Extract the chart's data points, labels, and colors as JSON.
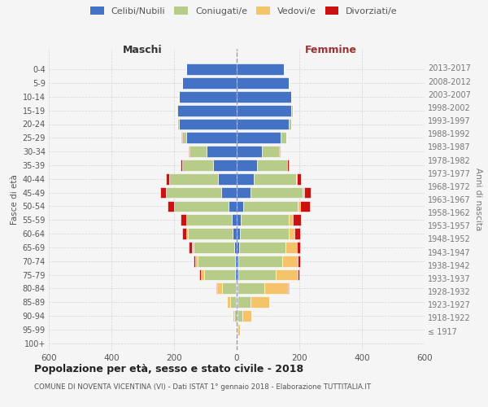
{
  "age_groups": [
    "100+",
    "95-99",
    "90-94",
    "85-89",
    "80-84",
    "75-79",
    "70-74",
    "65-69",
    "60-64",
    "55-59",
    "50-54",
    "45-49",
    "40-44",
    "35-39",
    "30-34",
    "25-29",
    "20-24",
    "15-19",
    "10-14",
    "5-9",
    "0-4"
  ],
  "birth_years": [
    "≤ 1917",
    "1918-1922",
    "1923-1927",
    "1928-1932",
    "1933-1937",
    "1938-1942",
    "1943-1947",
    "1948-1952",
    "1953-1957",
    "1958-1962",
    "1963-1967",
    "1968-1972",
    "1973-1977",
    "1978-1982",
    "1983-1987",
    "1988-1992",
    "1993-1997",
    "1998-2002",
    "2003-2007",
    "2008-2012",
    "2013-2017"
  ],
  "maschi": {
    "celibe": [
      0,
      0,
      0,
      2,
      2,
      5,
      5,
      8,
      12,
      15,
      25,
      50,
      60,
      75,
      95,
      160,
      185,
      190,
      185,
      175,
      160
    ],
    "coniugato": [
      0,
      2,
      8,
      18,
      45,
      100,
      120,
      130,
      145,
      145,
      175,
      175,
      155,
      100,
      55,
      15,
      5,
      2,
      0,
      0,
      0
    ],
    "vedovo": [
      0,
      0,
      5,
      12,
      15,
      10,
      8,
      5,
      3,
      2,
      1,
      1,
      1,
      0,
      0,
      0,
      0,
      0,
      0,
      0,
      0
    ],
    "divorziato": [
      0,
      0,
      0,
      0,
      2,
      5,
      5,
      10,
      15,
      18,
      20,
      18,
      10,
      5,
      2,
      1,
      0,
      0,
      0,
      0,
      0
    ]
  },
  "femmine": {
    "nubile": [
      0,
      0,
      2,
      3,
      3,
      5,
      5,
      7,
      10,
      12,
      20,
      45,
      55,
      65,
      80,
      140,
      165,
      175,
      175,
      165,
      150
    ],
    "coniugata": [
      1,
      3,
      15,
      40,
      85,
      120,
      140,
      150,
      155,
      155,
      175,
      165,
      135,
      95,
      55,
      18,
      8,
      3,
      0,
      0,
      0
    ],
    "vedova": [
      2,
      8,
      30,
      60,
      75,
      70,
      50,
      35,
      20,
      12,
      8,
      5,
      3,
      1,
      1,
      0,
      0,
      0,
      0,
      0,
      0
    ],
    "divorziata": [
      0,
      0,
      0,
      2,
      3,
      5,
      8,
      10,
      18,
      25,
      30,
      22,
      12,
      5,
      2,
      1,
      0,
      0,
      0,
      0,
      0
    ]
  },
  "colors": {
    "celibe_nubile": "#4472c4",
    "coniugato_a": "#b8cc8a",
    "vedovo_a": "#f5c46a",
    "divorziato_a": "#cc1111"
  },
  "title": "Popolazione per età, sesso e stato civile - 2018",
  "subtitle": "COMUNE DI NOVENTA VICENTINA (VI) - Dati ISTAT 1° gennaio 2018 - Elaborazione TUTTITALIA.IT",
  "ylabel_left": "Fasce di età",
  "ylabel_right": "Anni di nascita",
  "xlabel_left": "Maschi",
  "xlabel_right": "Femmine",
  "xlim": 600,
  "background_color": "#f5f5f5",
  "grid_color": "#cccccc",
  "legend_labels": [
    "Celibi/Nubili",
    "Coniugati/e",
    "Vedovi/e",
    "Divorziati/e"
  ]
}
